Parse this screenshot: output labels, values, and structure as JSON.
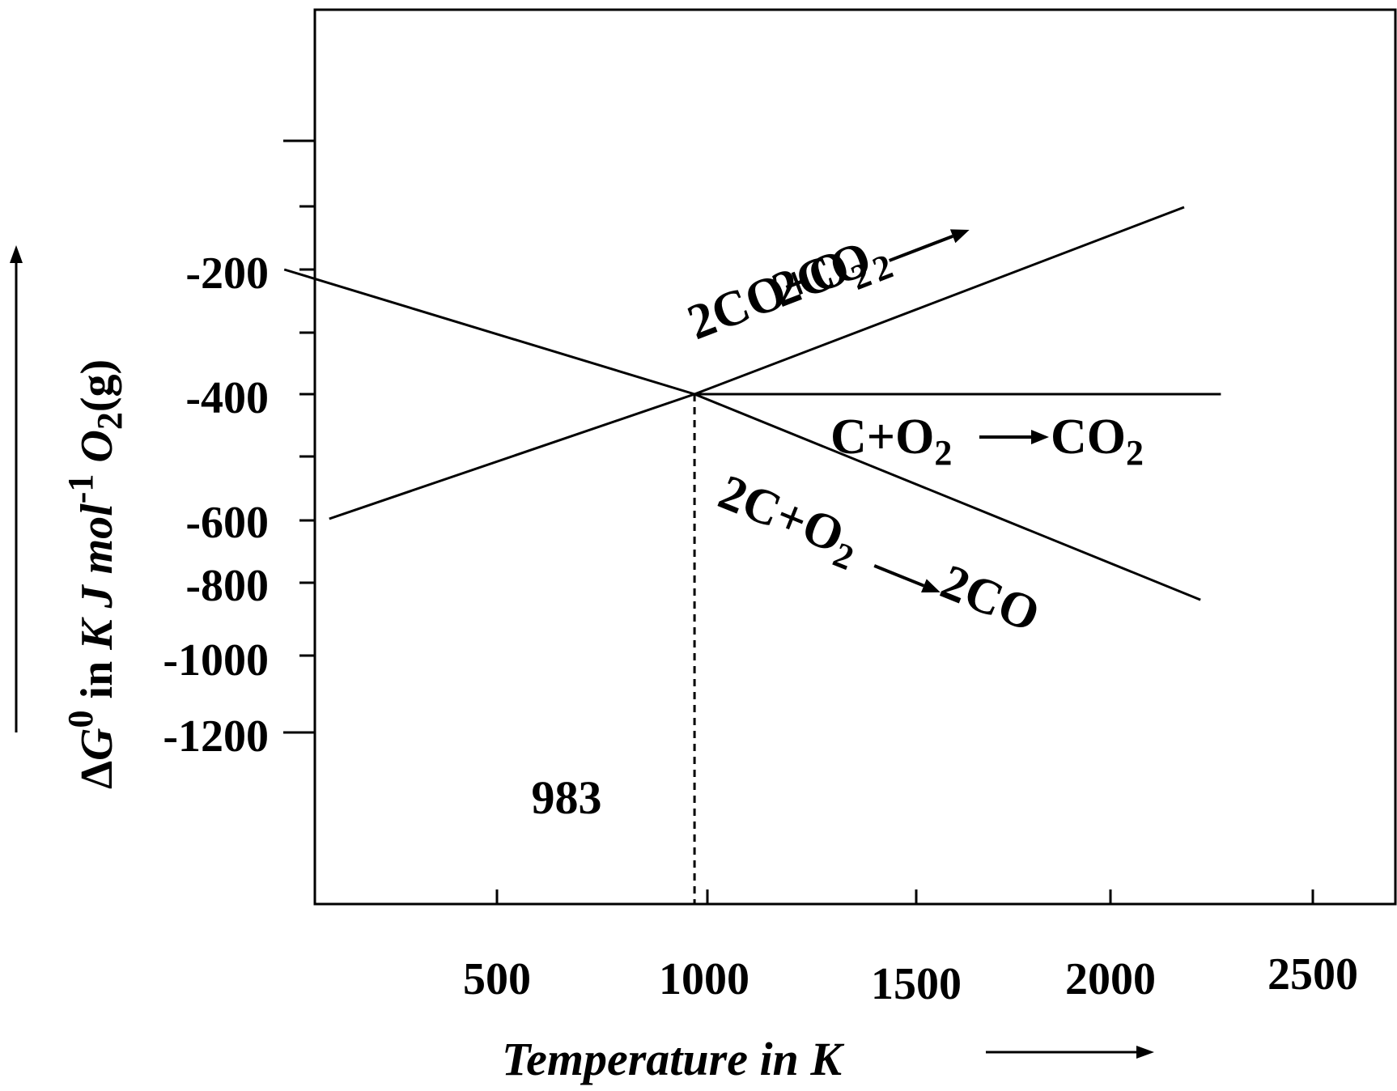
{
  "chart_data": {
    "type": "line",
    "title": "",
    "xlabel": "Temperature in K",
    "ylabel": {
      "delta": "Δ",
      "g": "G",
      "g_sup": "0",
      "mid": " in ",
      "unit": "K J mol",
      "unit_sup": "-1",
      "o": " O",
      "o_sub": "2",
      "tail": "(g)"
    },
    "x_ticks": [
      "500",
      "1000",
      "1500",
      "2000",
      "2500"
    ],
    "y_ticks": [
      "-200",
      "-400",
      "-600",
      "-800",
      "-1000",
      "-1200"
    ],
    "series": [
      {
        "name": "C+O2→CO2",
        "label_parts": {
          "a": "C+O",
          "a_sub": "2",
          "arrow": "→",
          "b": "CO",
          "b_sub": "2"
        },
        "x": [
          983,
          2270
        ],
        "y": [
          -400,
          -400
        ]
      },
      {
        "name": "2CO+O2→2CO2",
        "label_parts": {
          "a": "2CO+O",
          "a_sub": "2",
          "arrow": "→",
          "b": "2CO",
          "b_sub": "2"
        },
        "x": [
          90,
          983,
          2180
        ],
        "y": [
          -600,
          -400,
          -100
        ]
      },
      {
        "name": "2C+O2→2CO",
        "label_parts": {
          "a": "2C+O",
          "a_sub": "2",
          "arrow": "→",
          "b": "2CO",
          "b_sub": ""
        },
        "x": [
          -20,
          983,
          2220
        ],
        "y": [
          -200,
          -400,
          -730
        ]
      }
    ],
    "annotations": [
      {
        "text": "983",
        "x": 983,
        "note": "dashed vertical line at intersection"
      }
    ],
    "grid": false,
    "legend": "none"
  }
}
